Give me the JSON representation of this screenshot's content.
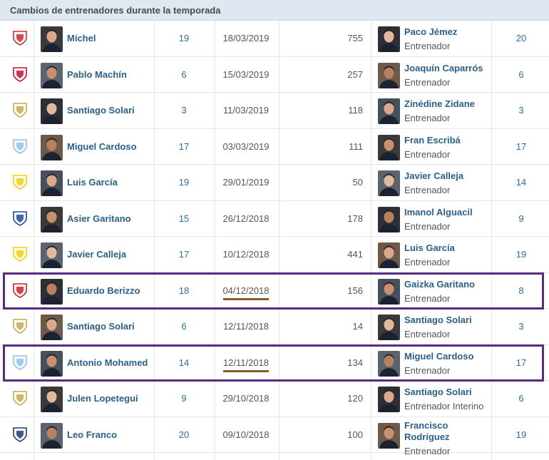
{
  "header": {
    "title": "Cambios de entrenadores durante la temporada"
  },
  "role_label": "Entrenador",
  "rows": [
    {
      "club_icon": "rayo-vallecano-crest-icon",
      "club_color": "#d42a2a",
      "out": "Míchel",
      "num_out": "19",
      "date": "18/03/2019",
      "games": "755",
      "in": "Paco Jémez",
      "in_role": "Entrenador",
      "num_in": "20"
    },
    {
      "club_icon": "sevilla-crest-icon",
      "club_color": "#c8102e",
      "out": "Pablo Machín",
      "num_out": "6",
      "date": "15/03/2019",
      "games": "257",
      "in": "Joaquín Caparrós",
      "in_role": "Entrenador",
      "num_in": "6"
    },
    {
      "club_icon": "real-madrid-crest-icon",
      "club_color": "#c9a94a",
      "out": "Santiago Solari",
      "num_out": "3",
      "date": "11/03/2019",
      "games": "118",
      "in": "Zinédine Zidane",
      "in_role": "Entrenador",
      "num_in": "3"
    },
    {
      "club_icon": "celta-crest-icon",
      "club_color": "#8bc4e8",
      "out": "Miguel Cardoso",
      "num_out": "17",
      "date": "03/03/2019",
      "games": "111",
      "in": "Fran Escribá",
      "in_role": "Entrenador",
      "num_in": "17"
    },
    {
      "club_icon": "villarreal-crest-icon",
      "club_color": "#f5d000",
      "out": "Luis García",
      "num_out": "19",
      "date": "29/01/2019",
      "games": "50",
      "in": "Javier Calleja",
      "in_role": "Entrenador",
      "num_in": "14"
    },
    {
      "club_icon": "real-sociedad-crest-icon",
      "club_color": "#1a4d9c",
      "out": "Asier Garitano",
      "num_out": "15",
      "date": "26/12/2018",
      "games": "178",
      "in": "Imanol Alguacil",
      "in_role": "Entrenador",
      "num_in": "9"
    },
    {
      "club_icon": "villarreal-crest-icon",
      "club_color": "#f5d000",
      "out": "Javier Calleja",
      "num_out": "17",
      "date": "10/12/2018",
      "games": "441",
      "in": "Luis García",
      "in_role": "Entrenador",
      "num_in": "19"
    },
    {
      "club_icon": "athletic-crest-icon",
      "club_color": "#d0202a",
      "out": "Eduardo Berizzo",
      "num_out": "18",
      "date": "04/12/2018",
      "games": "156",
      "in": "Gaizka Garitano",
      "in_role": "Entrenador",
      "num_in": "8"
    },
    {
      "club_icon": "real-madrid-crest-icon",
      "club_color": "#c9a94a",
      "out": "Santiago Solari",
      "num_out": "6",
      "date": "12/11/2018",
      "games": "14",
      "in": "Santiago Solari",
      "in_role": "Entrenador",
      "num_in": "3"
    },
    {
      "club_icon": "celta-crest-icon",
      "club_color": "#8bc4e8",
      "out": "Antonio Mohamed",
      "num_out": "14",
      "date": "12/11/2018",
      "games": "134",
      "in": "Miguel Cardoso",
      "in_role": "Entrenador",
      "num_in": "17"
    },
    {
      "club_icon": "real-madrid-crest-icon",
      "club_color": "#c9a94a",
      "out": "Julen Lopetegui",
      "num_out": "9",
      "date": "29/10/2018",
      "games": "120",
      "in": "Santiago Solari",
      "in_role": "Entrenador Interino",
      "num_in": "6"
    },
    {
      "club_icon": "huesca-crest-icon",
      "club_color": "#1f3a7a",
      "out": "Leo Franco",
      "num_out": "20",
      "date": "09/10/2018",
      "games": "100",
      "in": "Francisco Rodríguez",
      "in_role": "Entrenador",
      "num_in": "19"
    }
  ],
  "annotations": {
    "highlighted_rows": [
      7,
      9
    ],
    "underlined_dates": [
      7,
      9
    ],
    "box_color": "#5a2a82",
    "underline_color": "#8a5a2b"
  }
}
